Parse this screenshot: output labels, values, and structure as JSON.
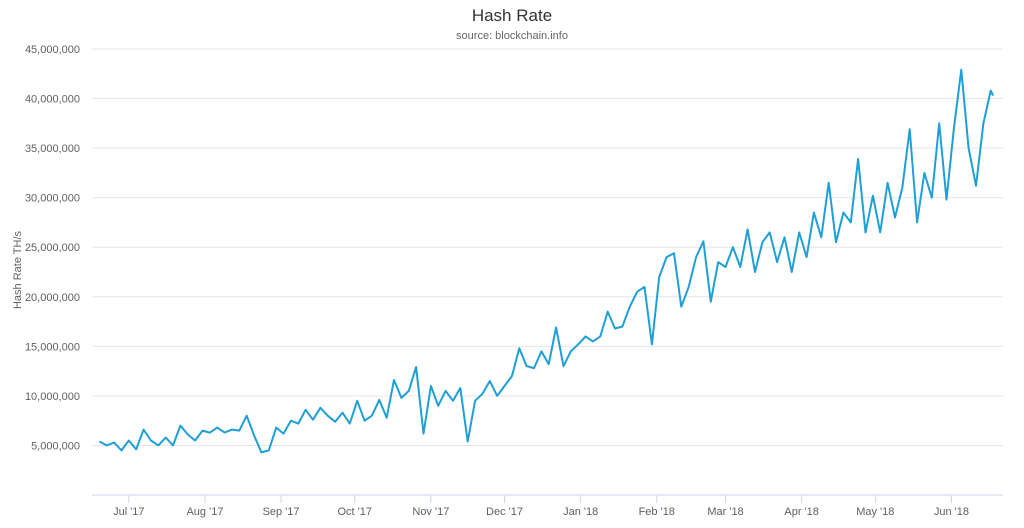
{
  "chart_data": {
    "type": "line",
    "title": "Hash Rate",
    "subtitle": "source: blockchain.info",
    "xlabel": "",
    "ylabel": "Hash Rate TH/s",
    "x_range": [
      "2017-06-16",
      "2018-06-22"
    ],
    "ylim": [
      0,
      45000000
    ],
    "grid": true,
    "legend": "none",
    "line_color": "#1f9fd6",
    "y_ticks": [
      "5,000,000",
      "10,000,000",
      "15,000,000",
      "20,000,000",
      "25,000,000",
      "30,000,000",
      "35,000,000",
      "40,000,000",
      "45,000,000"
    ],
    "y_tick_values": [
      5000000,
      10000000,
      15000000,
      20000000,
      25000000,
      30000000,
      35000000,
      40000000,
      45000000
    ],
    "x_ticks": [
      "Jul '17",
      "Aug '17",
      "Sep '17",
      "Oct '17",
      "Nov '17",
      "Dec '17",
      "Jan '18",
      "Feb '18",
      "Mar '18",
      "Apr '18",
      "May '18",
      "Jun '18"
    ],
    "x_tick_dates": [
      "2017-07-01",
      "2017-08-01",
      "2017-09-01",
      "2017-10-01",
      "2017-11-01",
      "2017-12-01",
      "2018-01-01",
      "2018-02-01",
      "2018-03-01",
      "2018-04-01",
      "2018-05-01",
      "2018-06-01"
    ],
    "series": [
      {
        "x": [
          "2017-06-19",
          "2017-06-22",
          "2017-06-25",
          "2017-06-28",
          "2017-07-01",
          "2017-07-04",
          "2017-07-07",
          "2017-07-10",
          "2017-07-13",
          "2017-07-16",
          "2017-07-19",
          "2017-07-22",
          "2017-07-25",
          "2017-07-28",
          "2017-07-31",
          "2017-08-03",
          "2017-08-06",
          "2017-08-09",
          "2017-08-12",
          "2017-08-15",
          "2017-08-18",
          "2017-08-21",
          "2017-08-24",
          "2017-08-27",
          "2017-08-30",
          "2017-09-02",
          "2017-09-05",
          "2017-09-08",
          "2017-09-11",
          "2017-09-14",
          "2017-09-17",
          "2017-09-20",
          "2017-09-23",
          "2017-09-26",
          "2017-09-29",
          "2017-10-02",
          "2017-10-05",
          "2017-10-08",
          "2017-10-11",
          "2017-10-14",
          "2017-10-17",
          "2017-10-20",
          "2017-10-23",
          "2017-10-26",
          "2017-10-29",
          "2017-11-01",
          "2017-11-04",
          "2017-11-07",
          "2017-11-10",
          "2017-11-13",
          "2017-11-16",
          "2017-11-19",
          "2017-11-22",
          "2017-11-25",
          "2017-11-28",
          "2017-12-01",
          "2017-12-04",
          "2017-12-07",
          "2017-12-10",
          "2017-12-13",
          "2017-12-16",
          "2017-12-19",
          "2017-12-22",
          "2017-12-25",
          "2017-12-28",
          "2017-12-31",
          "2018-01-03",
          "2018-01-06",
          "2018-01-09",
          "2018-01-12",
          "2018-01-15",
          "2018-01-18",
          "2018-01-21",
          "2018-01-24",
          "2018-01-27",
          "2018-01-30",
          "2018-02-02",
          "2018-02-05",
          "2018-02-08",
          "2018-02-11",
          "2018-02-14",
          "2018-02-17",
          "2018-02-20",
          "2018-02-23",
          "2018-02-26",
          "2018-03-01",
          "2018-03-04",
          "2018-03-07",
          "2018-03-10",
          "2018-03-13",
          "2018-03-16",
          "2018-03-19",
          "2018-03-22",
          "2018-03-25",
          "2018-03-28",
          "2018-03-31",
          "2018-04-03",
          "2018-04-06",
          "2018-04-09",
          "2018-04-12",
          "2018-04-15",
          "2018-04-18",
          "2018-04-21",
          "2018-04-24",
          "2018-04-27",
          "2018-04-30",
          "2018-05-03",
          "2018-05-06",
          "2018-05-09",
          "2018-05-12",
          "2018-05-15",
          "2018-05-18",
          "2018-05-21",
          "2018-05-24",
          "2018-05-27",
          "2018-05-30",
          "2018-06-02",
          "2018-06-05",
          "2018-06-08",
          "2018-06-11",
          "2018-06-14",
          "2018-06-17",
          "2018-06-18"
        ],
        "y": [
          5400000,
          5000000,
          5300000,
          4500000,
          5500000,
          4600000,
          6600000,
          5500000,
          5000000,
          5800000,
          5000000,
          7000000,
          6100000,
          5500000,
          6500000,
          6300000,
          6800000,
          6300000,
          6600000,
          6500000,
          8000000,
          6000000,
          4300000,
          4500000,
          6800000,
          6200000,
          7500000,
          7200000,
          8600000,
          7600000,
          8800000,
          8000000,
          7400000,
          8300000,
          7200000,
          9500000,
          7500000,
          8000000,
          9600000,
          7800000,
          11600000,
          9800000,
          10500000,
          12900000,
          6200000,
          11000000,
          9000000,
          10500000,
          9500000,
          10800000,
          5400000,
          9500000,
          10200000,
          11500000,
          10000000,
          11000000,
          12000000,
          14800000,
          13000000,
          12800000,
          14500000,
          13200000,
          16900000,
          13000000,
          14500000,
          15200000,
          16000000,
          15500000,
          16000000,
          18500000,
          16800000,
          17000000,
          19000000,
          20500000,
          21000000,
          15200000,
          22000000,
          24000000,
          24400000,
          19000000,
          21000000,
          24000000,
          25600000,
          19500000,
          23500000,
          23000000,
          25000000,
          23000000,
          26800000,
          22500000,
          25500000,
          26500000,
          23500000,
          26000000,
          22500000,
          26500000,
          24000000,
          28500000,
          26000000,
          31500000,
          25500000,
          28500000,
          27500000,
          33900000,
          26500000,
          30200000,
          26500000,
          31500000,
          28000000,
          31000000,
          36900000,
          27500000,
          32500000,
          30000000,
          37500000,
          29800000,
          37000000,
          42900000,
          35000000,
          31200000,
          37500000,
          40800000,
          40300000
        ]
      }
    ]
  }
}
